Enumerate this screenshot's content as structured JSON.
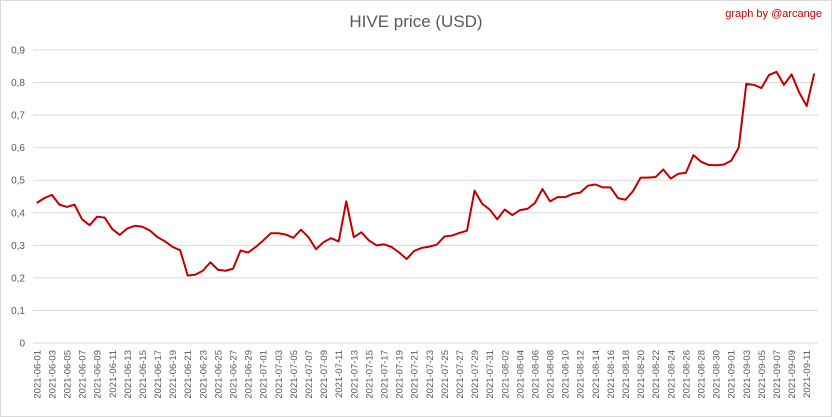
{
  "chart_data": {
    "type": "line",
    "title": "HIVE price (USD)",
    "credit": "graph by @arcange",
    "xlabel": "",
    "ylabel": "",
    "ylim": [
      0,
      0.9
    ],
    "yticks": [
      "0",
      "0,1",
      "0,2",
      "0,3",
      "0,4",
      "0,5",
      "0,6",
      "0,7",
      "0,8",
      "0,9"
    ],
    "xtick_labels": [
      "2021-06-01",
      "2021-06-03",
      "2021-06-05",
      "2021-06-07",
      "2021-06-09",
      "2021-06-11",
      "2021-06-13",
      "2021-06-15",
      "2021-06-17",
      "2021-06-19",
      "2021-06-21",
      "2021-06-23",
      "2021-06-25",
      "2021-06-27",
      "2021-06-29",
      "2021-07-01",
      "2021-07-03",
      "2021-07-05",
      "2021-07-07",
      "2021-07-09",
      "2021-07-11",
      "2021-07-13",
      "2021-07-15",
      "2021-07-17",
      "2021-07-19",
      "2021-07-21",
      "2021-07-23",
      "2021-07-25",
      "2021-07-27",
      "2021-07-29",
      "2021-07-31",
      "2021-08-02",
      "2021-08-04",
      "2021-08-06",
      "2021-08-08",
      "2021-08-10",
      "2021-08-12",
      "2021-08-14",
      "2021-08-16",
      "2021-08-18",
      "2021-08-20",
      "2021-08-22",
      "2021-08-24",
      "2021-08-26",
      "2021-08-28",
      "2021-08-30",
      "2021-09-01",
      "2021-09-03",
      "2021-09-05",
      "2021-09-07",
      "2021-09-09",
      "2021-09-11"
    ],
    "grid": true,
    "legend": "none",
    "line_color": "#c00000",
    "series": [
      {
        "values": [
          0.43,
          0.445,
          0.455,
          0.425,
          0.418,
          0.425,
          0.38,
          0.362,
          0.388,
          0.385,
          0.35,
          0.332,
          0.352,
          0.36,
          0.357,
          0.345,
          0.325,
          0.312,
          0.295,
          0.285,
          0.207,
          0.21,
          0.222,
          0.248,
          0.225,
          0.222,
          0.228,
          0.284,
          0.278,
          0.295,
          0.315,
          0.337,
          0.337,
          0.333,
          0.323,
          0.348,
          0.325,
          0.288,
          0.31,
          0.322,
          0.312,
          0.435,
          0.325,
          0.34,
          0.315,
          0.3,
          0.303,
          0.295,
          0.278,
          0.258,
          0.283,
          0.292,
          0.296,
          0.302,
          0.327,
          0.33,
          0.338,
          0.345,
          0.468,
          0.428,
          0.41,
          0.38,
          0.41,
          0.393,
          0.408,
          0.412,
          0.43,
          0.473,
          0.435,
          0.448,
          0.448,
          0.458,
          0.462,
          0.483,
          0.487,
          0.478,
          0.478,
          0.445,
          0.44,
          0.467,
          0.508,
          0.508,
          0.51,
          0.533,
          0.505,
          0.52,
          0.523,
          0.577,
          0.557,
          0.547,
          0.546,
          0.548,
          0.56,
          0.6,
          0.796,
          0.793,
          0.783,
          0.823,
          0.833,
          0.793,
          0.825,
          0.77,
          0.728,
          0.828
        ]
      }
    ]
  }
}
